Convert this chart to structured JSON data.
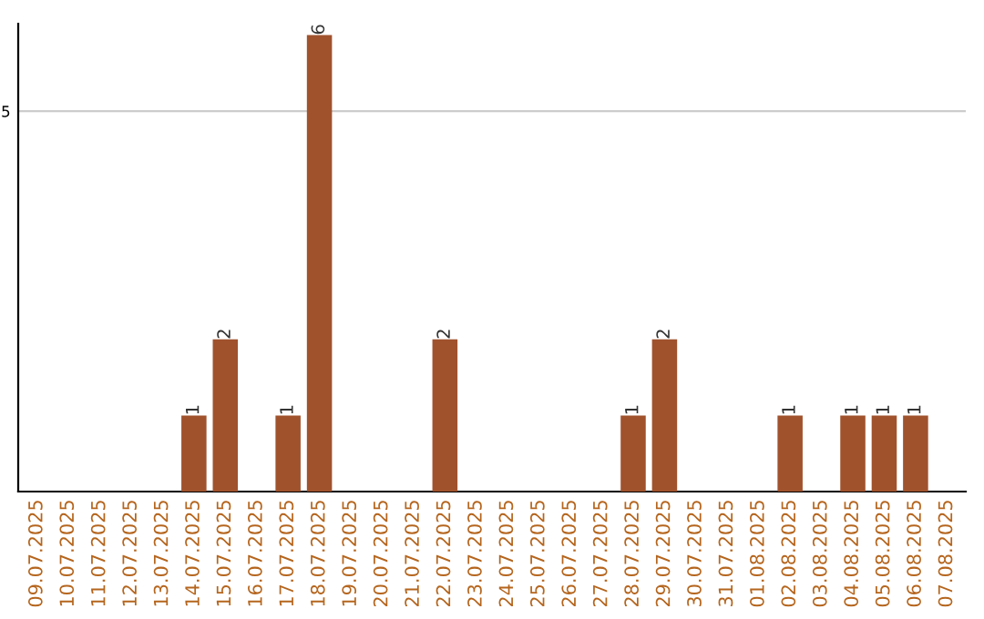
{
  "chart_data": {
    "type": "bar",
    "categories": [
      "09.07.2025",
      "10.07.2025",
      "11.07.2025",
      "12.07.2025",
      "13.07.2025",
      "14.07.2025",
      "15.07.2025",
      "16.07.2025",
      "17.07.2025",
      "18.07.2025",
      "19.07.2025",
      "20.07.2025",
      "21.07.2025",
      "22.07.2025",
      "23.07.2025",
      "24.07.2025",
      "25.07.2025",
      "26.07.2025",
      "27.07.2025",
      "28.07.2025",
      "29.07.2025",
      "30.07.2025",
      "31.07.2025",
      "01.08.2025",
      "02.08.2025",
      "03.08.2025",
      "04.08.2025",
      "05.08.2025",
      "06.08.2025",
      "07.08.2025"
    ],
    "values": [
      0,
      0,
      0,
      0,
      0,
      1,
      2,
      0,
      1,
      6,
      0,
      0,
      0,
      2,
      0,
      0,
      0,
      0,
      0,
      1,
      2,
      0,
      0,
      0,
      1,
      0,
      1,
      1,
      1,
      0
    ],
    "value_labels": [
      null,
      null,
      null,
      null,
      null,
      "1",
      "2",
      null,
      "1",
      "6",
      null,
      null,
      null,
      "2",
      null,
      null,
      null,
      null,
      null,
      "1",
      "2",
      null,
      null,
      null,
      "1",
      null,
      "1",
      "1",
      "1",
      null
    ],
    "color": "#a0522d",
    "ylim": [
      0,
      6.15
    ],
    "yticks": [
      5
    ],
    "grid": "y"
  }
}
